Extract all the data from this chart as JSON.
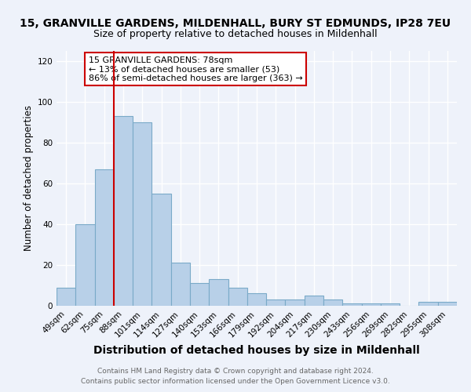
{
  "title1": "15, GRANVILLE GARDENS, MILDENHALL, BURY ST EDMUNDS, IP28 7EU",
  "title2": "Size of property relative to detached houses in Mildenhall",
  "xlabel": "Distribution of detached houses by size in Mildenhall",
  "ylabel": "Number of detached properties",
  "categories": [
    "49sqm",
    "62sqm",
    "75sqm",
    "88sqm",
    "101sqm",
    "114sqm",
    "127sqm",
    "140sqm",
    "153sqm",
    "166sqm",
    "179sqm",
    "192sqm",
    "204sqm",
    "217sqm",
    "230sqm",
    "243sqm",
    "256sqm",
    "269sqm",
    "282sqm",
    "295sqm",
    "308sqm"
  ],
  "values": [
    9,
    40,
    67,
    93,
    90,
    55,
    21,
    11,
    13,
    9,
    6,
    3,
    3,
    5,
    3,
    1,
    1,
    1,
    0,
    2,
    2
  ],
  "bar_color": "#b8d0e8",
  "bar_edge_color": "#7aaac8",
  "vline_index": 2,
  "vline_color": "#cc0000",
  "annotation_box_text": "15 GRANVILLE GARDENS: 78sqm\n← 13% of detached houses are smaller (53)\n86% of semi-detached houses are larger (363) →",
  "ylim": [
    0,
    125
  ],
  "yticks": [
    0,
    20,
    40,
    60,
    80,
    100,
    120
  ],
  "footer1": "Contains HM Land Registry data © Crown copyright and database right 2024.",
  "footer2": "Contains public sector information licensed under the Open Government Licence v3.0.",
  "bg_color": "#eef2fa",
  "grid_color": "#ffffff",
  "title1_fontsize": 10,
  "title2_fontsize": 9,
  "xlabel_fontsize": 10,
  "ylabel_fontsize": 8.5,
  "tick_fontsize": 7.5,
  "footer_fontsize": 6.5,
  "annotation_fontsize": 8
}
